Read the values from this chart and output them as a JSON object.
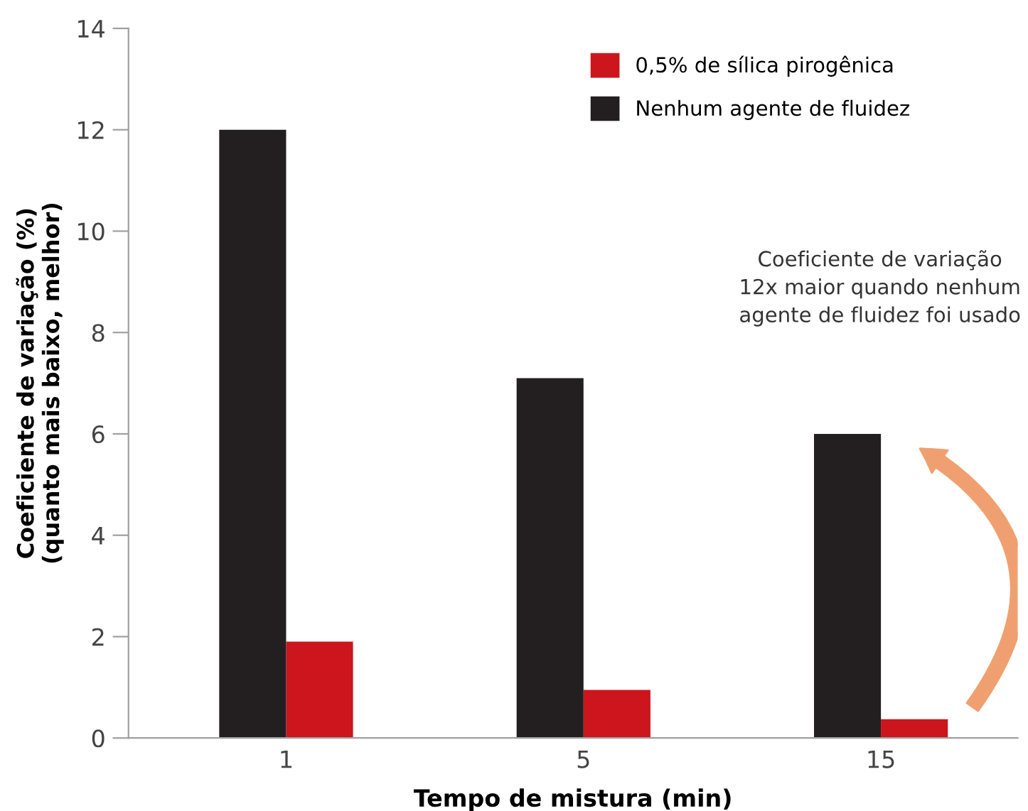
{
  "chart_data": {
    "type": "bar",
    "xlabel": "Tempo de mistura (min)",
    "ylabel": "Coeficiente de variação (%)\n(quanto mais baixo, melhor)",
    "categories": [
      "1",
      "5",
      "15"
    ],
    "series": [
      {
        "name": "0,5% de sílica pirogênica",
        "color": "#cc151c",
        "values": [
          1.9,
          0.95,
          0.37
        ]
      },
      {
        "name": "Nenhum agente de fluidez",
        "color": "#231f20",
        "values": [
          12.0,
          7.1,
          6.0
        ]
      }
    ],
    "ylim": [
      0,
      14
    ],
    "yticks": [
      0,
      2,
      4,
      6,
      8,
      10,
      12,
      14
    ],
    "grid": false,
    "legend": "top right",
    "annotations": [
      "Coeficiente de variação\n12x maior quando nenhum\nagente de fluidez foi usado"
    ]
  }
}
